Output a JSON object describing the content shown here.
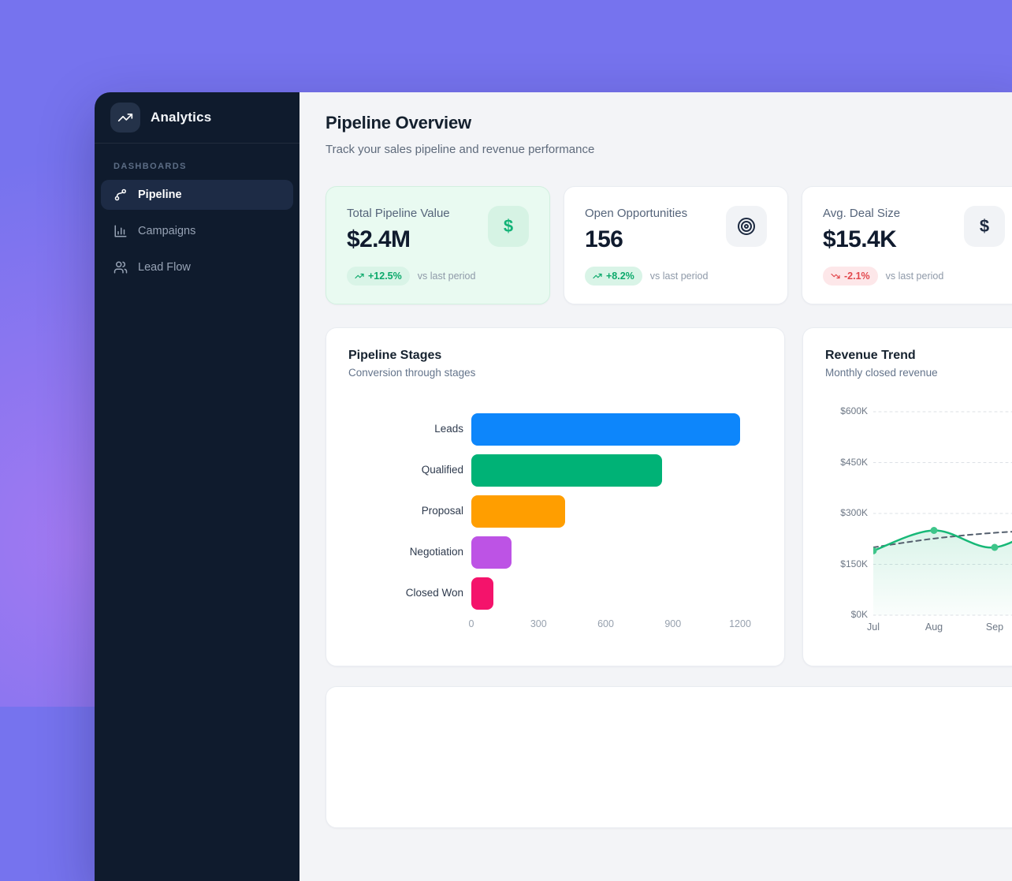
{
  "backdrop": {
    "base_color": "#7673ee",
    "glow_color": "#c57ef5"
  },
  "sidebar": {
    "app_name": "Analytics",
    "logo_icon": "trending-up-icon",
    "section_label": "DASHBOARDS",
    "items": [
      {
        "label": "Pipeline",
        "icon": "pipeline-icon",
        "active": true
      },
      {
        "label": "Campaigns",
        "icon": "bar-chart-icon",
        "active": false
      },
      {
        "label": "Lead Flow",
        "icon": "users-icon",
        "active": false
      }
    ]
  },
  "header": {
    "title": "Pipeline Overview",
    "subtitle": "Track your sales pipeline and revenue performance"
  },
  "stat_cards": [
    {
      "label": "Total Pipeline Value",
      "value": "$2.4M",
      "change": "+12.5%",
      "direction": "up",
      "compare": "vs last period",
      "icon": "dollar-icon",
      "highlighted": true
    },
    {
      "label": "Open Opportunities",
      "value": "156",
      "change": "+8.2%",
      "direction": "up",
      "compare": "vs last period",
      "icon": "target-icon",
      "highlighted": false
    },
    {
      "label": "Avg. Deal Size",
      "value": "$15.4K",
      "change": "-2.1%",
      "direction": "down",
      "compare": "vs last period",
      "icon": "dollar-icon",
      "highlighted": false
    }
  ],
  "status_colors": {
    "positive_bg": "#d9f4e7",
    "positive_text": "#0ca96b",
    "negative_bg": "#fde7e9",
    "negative_text": "#e2484d",
    "accent_green": "#17b877"
  },
  "chart_data": [
    {
      "type": "bar",
      "orientation": "horizontal",
      "title": "Pipeline Stages",
      "subtitle": "Conversion through stages",
      "categories": [
        "Leads",
        "Qualified",
        "Proposal",
        "Negotiation",
        "Closed Won"
      ],
      "values": [
        1200,
        850,
        420,
        180,
        100
      ],
      "bar_colors": [
        "#0d86fb",
        "#00b276",
        "#ff9e00",
        "#bd53e5",
        "#f4136b"
      ],
      "xlim": [
        0,
        1200
      ],
      "xticks": [
        "0",
        "300",
        "600",
        "900",
        "1200"
      ],
      "grid": false
    },
    {
      "type": "line",
      "title": "Revenue Trend",
      "subtitle": "Monthly closed revenue",
      "x": [
        "Jul",
        "Aug",
        "Sep"
      ],
      "unit": "$K",
      "ylim": [
        0,
        600
      ],
      "yticks": [
        "$600K",
        "$450K",
        "$300K",
        "$150K",
        "$0K"
      ],
      "grid": "dashed-horizontal",
      "legend": "none",
      "series": [
        {
          "name": "revenue",
          "style": "smooth-line-with-area",
          "color": "#17b877",
          "values": [
            190,
            250,
            200
          ],
          "continues_offscreen_to": 290
        },
        {
          "name": "trend",
          "style": "dashed",
          "color": "#55606e",
          "values": [
            200,
            226,
            243
          ],
          "continues_offscreen_to": 252
        }
      ]
    }
  ]
}
